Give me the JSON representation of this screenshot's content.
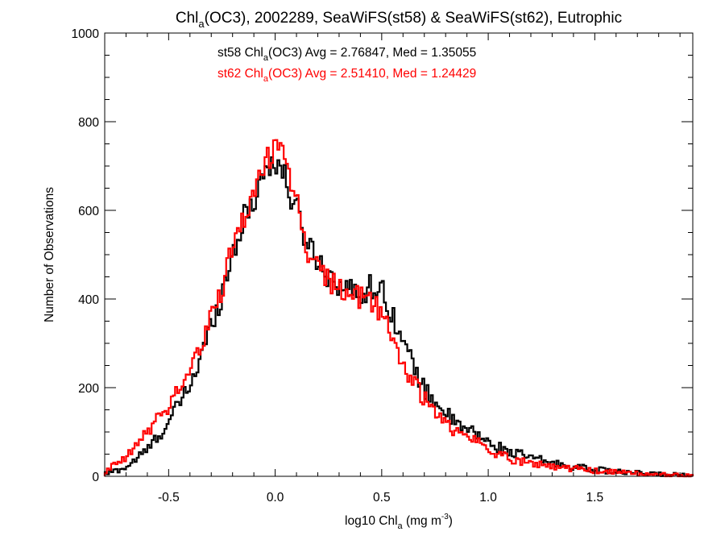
{
  "chart_data": {
    "type": "histogram",
    "title": {
      "main": "Chl",
      "sub": "a",
      "rest": "(OC3), 2002289, SeaWiFS(st58) & SeaWiFS(st62), Eutrophic"
    },
    "xlabel": {
      "main": "log10 Chl",
      "sub": "a",
      "mid": " (mg m",
      "sup": "-3",
      "end": ")"
    },
    "ylabel": "Number of Observations",
    "xlim": [
      -0.8,
      1.96
    ],
    "ylim": [
      0,
      1000
    ],
    "x_ticks": [
      -0.5,
      0.0,
      0.5,
      1.0,
      1.5
    ],
    "x_tick_labels": [
      "-0.5",
      "0.0",
      "0.5",
      "1.0",
      "1.5"
    ],
    "y_ticks": [
      0,
      200,
      400,
      600,
      800,
      1000
    ],
    "y_tick_labels": [
      "0",
      "200",
      "400",
      "600",
      "800",
      "1000"
    ],
    "grid": false,
    "annotations": [
      {
        "prefix": "st58 Chl",
        "sub": "a",
        "suffix": "(OC3) Avg = 2.76847, Med = 1.35055",
        "color": "#000000"
      },
      {
        "prefix": "st62 Chl",
        "sub": "a",
        "suffix": "(OC3) Avg = 2.51410, Med = 1.24429",
        "color": "#ff0000"
      }
    ],
    "bin_width": 0.01,
    "series": [
      {
        "color": "#000000",
        "x": [
          -0.8,
          -0.7,
          -0.6,
          -0.5,
          -0.45,
          -0.4,
          -0.35,
          -0.3,
          -0.25,
          -0.2,
          -0.15,
          -0.1,
          -0.05,
          0.0,
          0.03,
          0.06,
          0.1,
          0.15,
          0.2,
          0.25,
          0.3,
          0.35,
          0.4,
          0.45,
          0.5,
          0.55,
          0.6,
          0.65,
          0.7,
          0.75,
          0.8,
          0.85,
          0.9,
          0.95,
          1.0,
          1.1,
          1.2,
          1.3,
          1.4,
          1.5,
          1.6,
          1.7,
          1.8,
          1.96
        ],
        "values": [
          5,
          20,
          60,
          120,
          165,
          205,
          265,
          345,
          410,
          505,
          575,
          625,
          690,
          715,
          690,
          650,
          600,
          530,
          490,
          455,
          435,
          420,
          410,
          430,
          420,
          370,
          300,
          250,
          195,
          170,
          145,
          115,
          105,
          95,
          75,
          55,
          42,
          30,
          22,
          15,
          10,
          7,
          5,
          2
        ]
      },
      {
        "color": "#ff0000",
        "x": [
          -0.8,
          -0.7,
          -0.6,
          -0.5,
          -0.45,
          -0.4,
          -0.35,
          -0.3,
          -0.25,
          -0.2,
          -0.15,
          -0.1,
          -0.05,
          0.0,
          0.03,
          0.06,
          0.1,
          0.15,
          0.2,
          0.25,
          0.3,
          0.35,
          0.4,
          0.45,
          0.5,
          0.55,
          0.6,
          0.65,
          0.7,
          0.75,
          0.8,
          0.85,
          0.9,
          0.95,
          1.0,
          1.1,
          1.2,
          1.3,
          1.4,
          1.5,
          1.6,
          1.7,
          1.8,
          1.96
        ],
        "values": [
          10,
          40,
          100,
          160,
          200,
          240,
          290,
          360,
          425,
          510,
          585,
          640,
          700,
          750,
          760,
          700,
          620,
          510,
          470,
          445,
          420,
          415,
          400,
          395,
          375,
          310,
          255,
          210,
          175,
          145,
          120,
          100,
          90,
          80,
          60,
          40,
          30,
          22,
          18,
          12,
          9,
          6,
          4,
          2
        ]
      }
    ]
  }
}
